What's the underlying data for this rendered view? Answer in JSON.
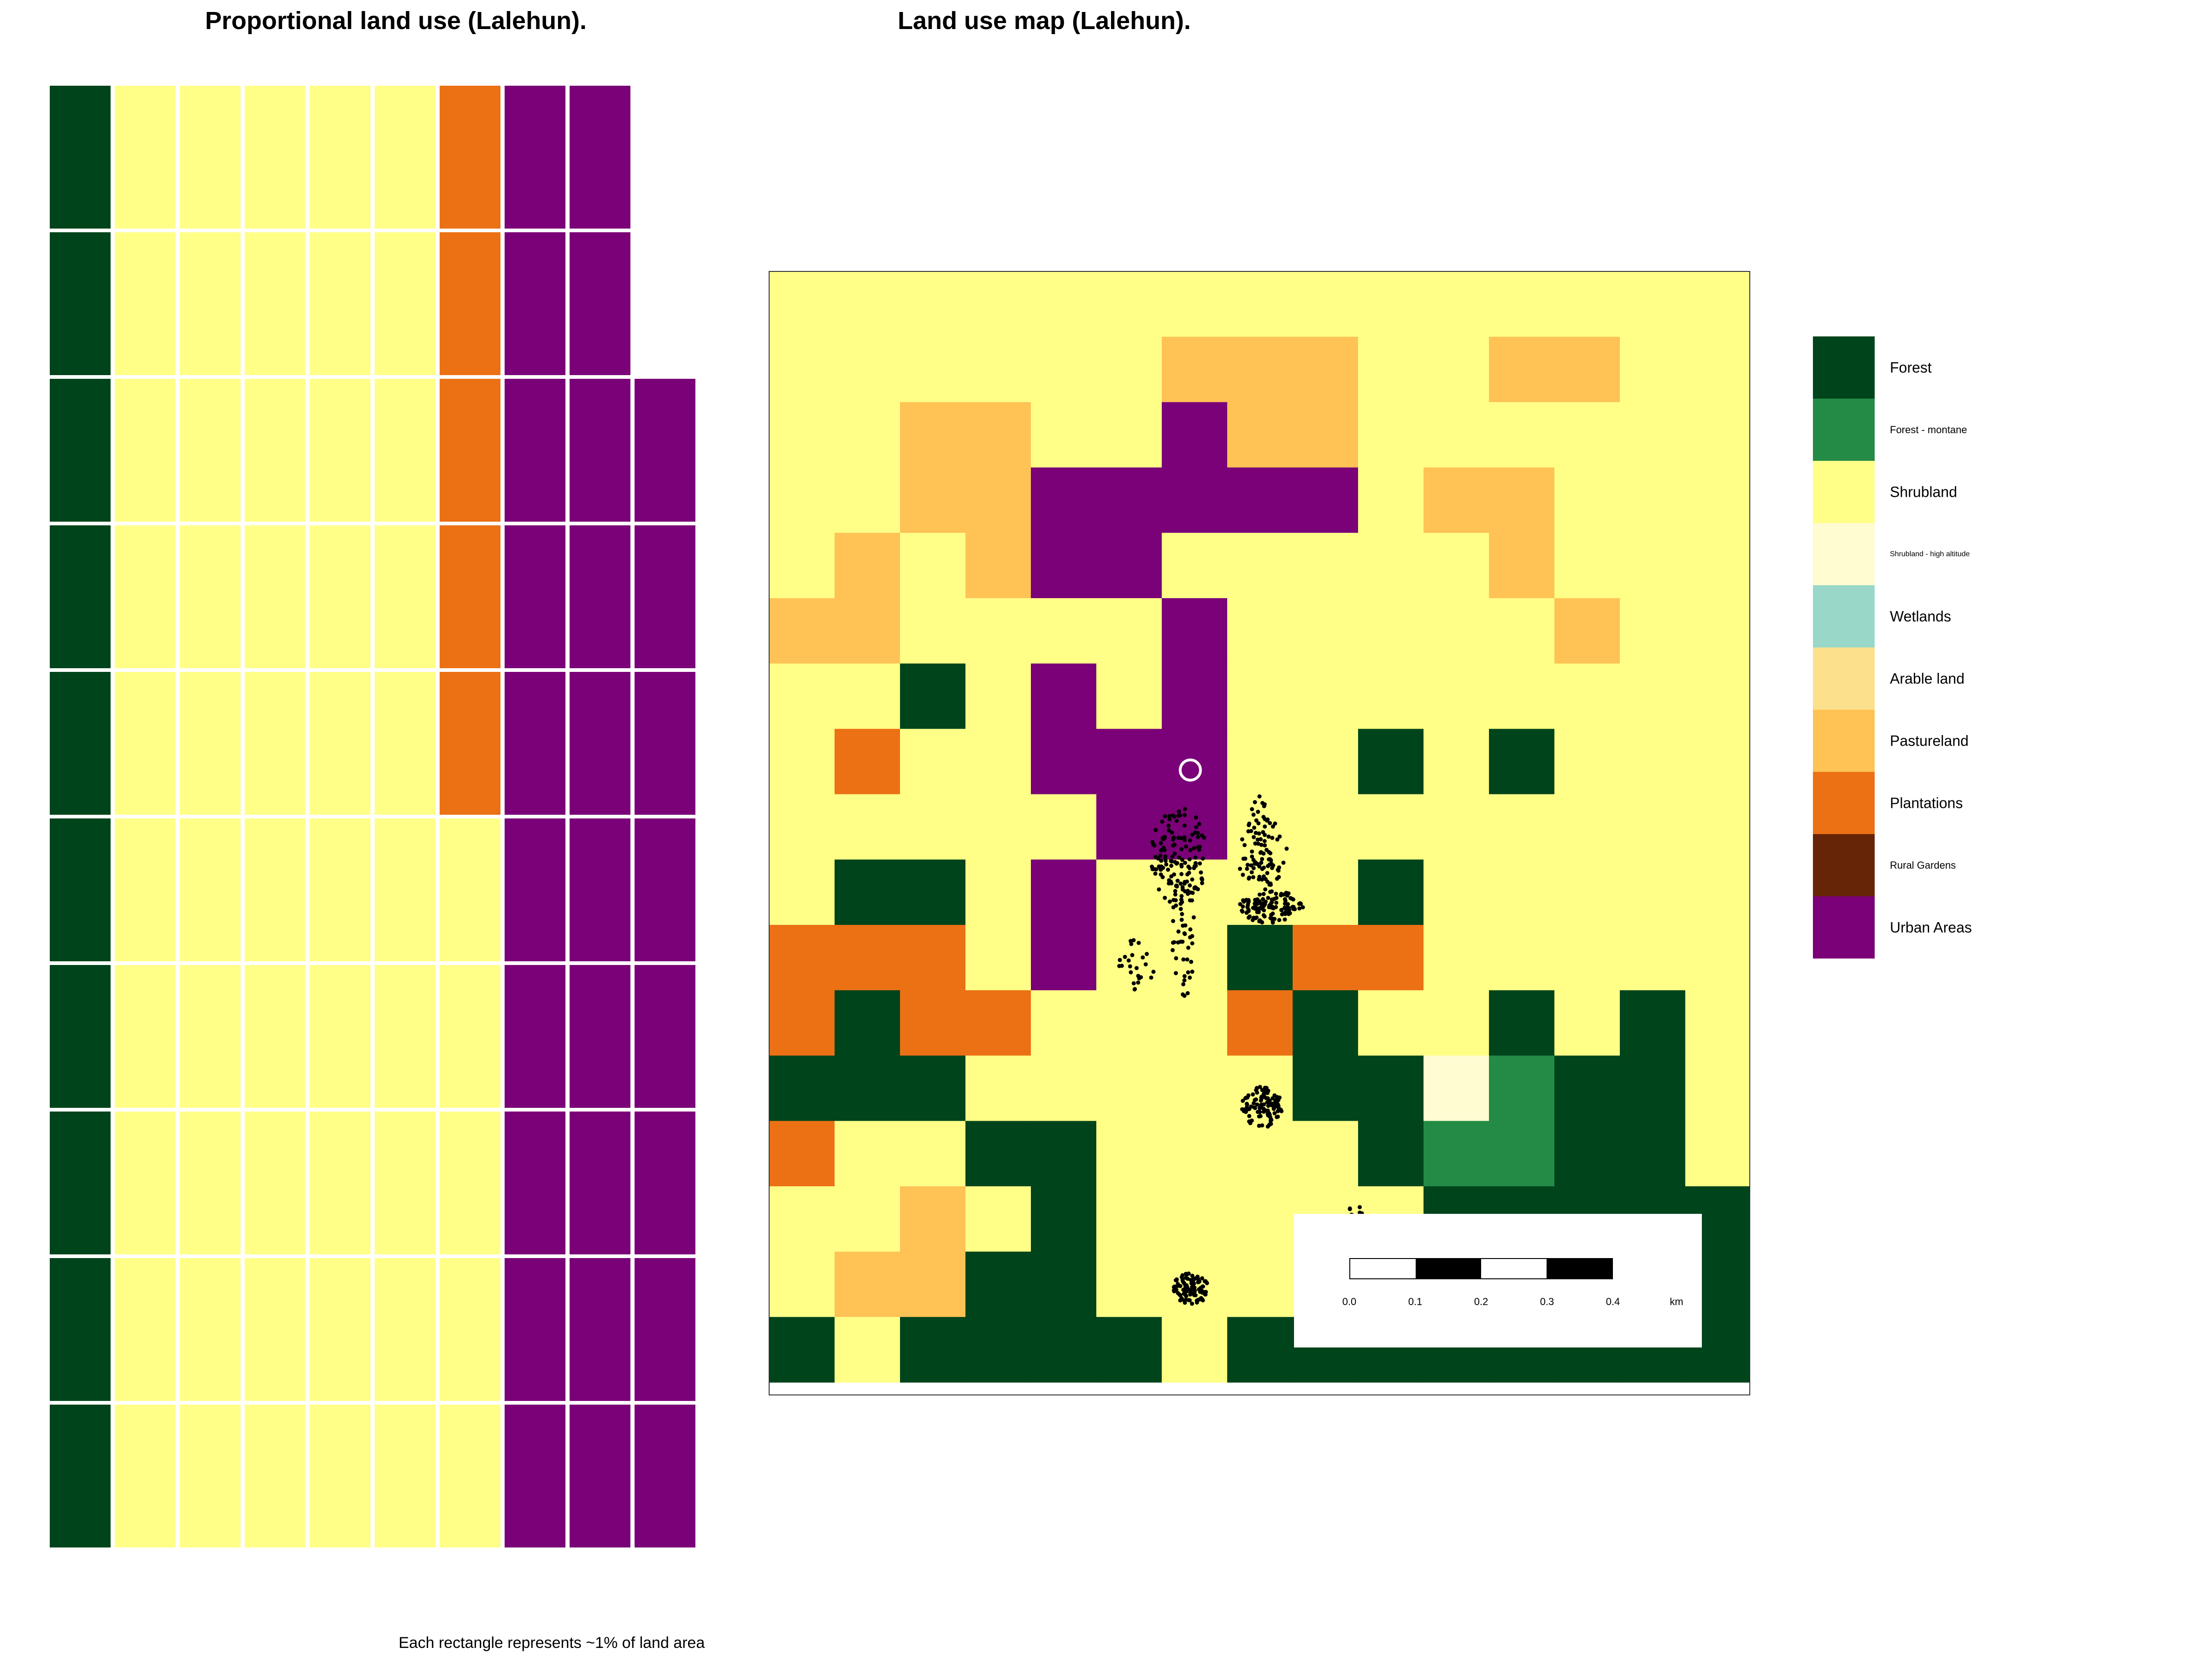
{
  "titles": {
    "waffle": "Proportional land use (Lalehun).",
    "map": "Land use map (Lalehun)."
  },
  "waffle_caption": "Each rectangle represents ~1% of land area",
  "colors": {
    "forest": "#00441B",
    "forest_montane": "#238B45",
    "shrubland": "#FFFF88",
    "shrubland_high_altitude": "#FFFCD1",
    "wetlands": "#99D8C9",
    "arable_land": "#FDE08C",
    "pastureland": "#FEC255",
    "plantations": "#EC7014",
    "rural_gardens": "#662506",
    "urban_areas": "#7A0177"
  },
  "legend": {
    "items": [
      {
        "key": "forest",
        "label": "Forest",
        "size": "big"
      },
      {
        "key": "forest_montane",
        "label": "Forest - montane",
        "size": "small"
      },
      {
        "key": "shrubland",
        "label": "Shrubland",
        "size": "big"
      },
      {
        "key": "shrubland_high_altitude",
        "label": "Shrubland - high altitude",
        "size": "tiny"
      },
      {
        "key": "wetlands",
        "label": "Wetlands",
        "size": "big"
      },
      {
        "key": "arable_land",
        "label": "Arable land",
        "size": "big"
      },
      {
        "key": "pastureland",
        "label": "Pastureland",
        "size": "big"
      },
      {
        "key": "plantations",
        "label": "Plantations",
        "size": "big"
      },
      {
        "key": "rural_gardens",
        "label": "Rural Gardens",
        "size": "small"
      },
      {
        "key": "urban_areas",
        "label": "Urban Areas",
        "size": "big"
      }
    ]
  },
  "waffle": {
    "columns": [
      [
        "forest",
        "forest",
        "forest",
        "forest",
        "forest",
        "forest",
        "forest",
        "forest",
        "forest",
        "forest"
      ],
      [
        "shrubland",
        "shrubland",
        "shrubland",
        "shrubland",
        "shrubland",
        "shrubland",
        "shrubland",
        "shrubland",
        "shrubland",
        "shrubland"
      ],
      [
        "shrubland",
        "shrubland",
        "shrubland",
        "shrubland",
        "shrubland",
        "shrubland",
        "shrubland",
        "shrubland",
        "shrubland",
        "shrubland"
      ],
      [
        "shrubland",
        "shrubland",
        "shrubland",
        "shrubland",
        "shrubland",
        "shrubland",
        "shrubland",
        "shrubland",
        "shrubland",
        "shrubland"
      ],
      [
        "shrubland",
        "shrubland",
        "shrubland",
        "shrubland",
        "shrubland",
        "shrubland",
        "shrubland",
        "shrubland",
        "shrubland",
        "shrubland"
      ],
      [
        "shrubland",
        "shrubland",
        "shrubland",
        "shrubland",
        "shrubland",
        "shrubland",
        "shrubland",
        "shrubland",
        "shrubland",
        "shrubland"
      ],
      [
        "shrubland",
        "shrubland",
        "shrubland",
        "shrubland",
        "shrubland",
        "plantations",
        "plantations",
        "plantations",
        "plantations",
        "plantations"
      ],
      [
        "urban_areas",
        "urban_areas",
        "urban_areas",
        "urban_areas",
        "urban_areas",
        "urban_areas",
        "urban_areas",
        "urban_areas",
        "urban_areas",
        "urban_areas"
      ],
      [
        "urban_areas",
        "urban_areas",
        "urban_areas",
        "urban_areas",
        "urban_areas",
        "urban_areas",
        "urban_areas",
        "urban_areas",
        "urban_areas",
        "urban_areas"
      ],
      [
        "urban_areas",
        "urban_areas",
        "urban_areas",
        "urban_areas",
        "urban_areas",
        "urban_areas",
        "urban_areas",
        "urban_areas"
      ]
    ]
  },
  "map": {
    "legend_codes": {
      "F": "forest",
      "M": "forest_montane",
      "S": "shrubland",
      "H": "shrubland_high_altitude",
      "P": "pastureland",
      "T": "plantations",
      "U": "urban_areas"
    },
    "grid": [
      "SSSSSSSSSSSSSSS",
      "SSSSSSPPPSSPPSS",
      "SSPPSSUPPSSSSSS",
      "SSPPUUUUUSPPSSS",
      "SPSPUUSSSSSPSSS",
      "PPSSSSUSSSSSPSS",
      "SSFSUSUSSSSSSSS",
      "STSSUUUSSFSFSSS",
      "SSSSSUUSSSSSSSS",
      "SFFSUSSSSFSSSSS",
      "TTTSUSSFTTSSSSS",
      "TFTTSSSTFSSFSFS",
      "FFFSSSSSFFHMFFS",
      "TSSFFSSSSFMMFFS",
      "SSPSFSSSSSFFFFF",
      "SPPFFSSSSSSFFFF",
      "FSFFFFSFFFFFFFF"
    ],
    "scalebar": {
      "labels": [
        "0.0",
        "0.1",
        "0.2",
        "0.3",
        "0.4"
      ],
      "unit": "km"
    }
  }
}
